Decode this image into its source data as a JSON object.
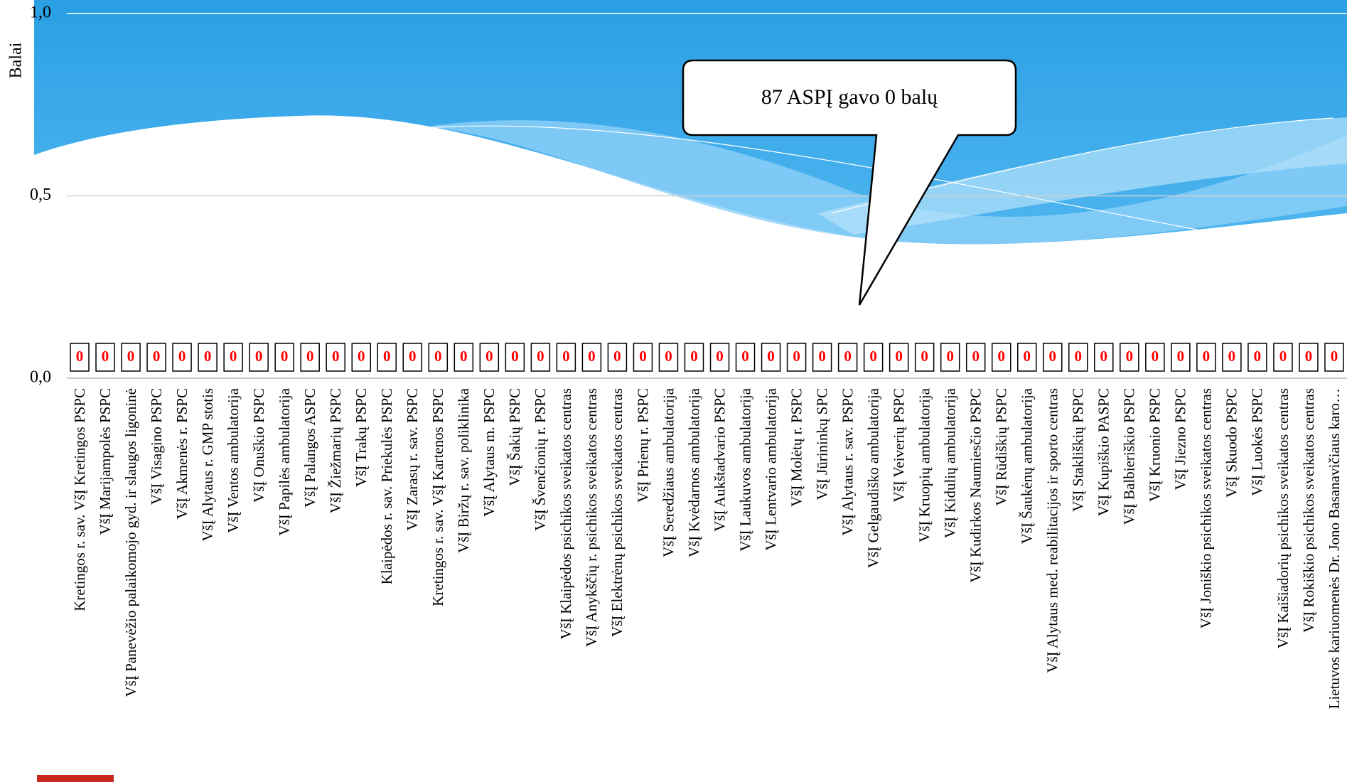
{
  "chart_data": {
    "type": "bar",
    "y_axis_label": "Balai",
    "annotation": "87 ASPĮ gavo 0 balų",
    "categories": [
      "Kretingos r. sav. VšĮ Kretingos PSPC",
      "VšĮ Marijampolės PSPC",
      "VšĮ Panevėžio palaikomojo gyd. ir slaugos ligoninė",
      "VšĮ Visagino PSPC",
      "VšĮ Akmenės r. PSPC",
      "VšĮ Alytaus r. GMP stotis",
      "VšĮ Ventos ambulatorija",
      "VšĮ Onuškio PSPC",
      "VšĮ Papilės ambulatorija",
      "VšĮ Palangos ASPC",
      "VšĮ Žiežmarių PSPC",
      "VšĮ Trakų PSPC",
      "Klaipėdos r. sav. Priekulės PSPC",
      "VšĮ Zarasų r. sav. PSPC",
      "Kretingos r. sav. VšĮ Kartenos PSPC",
      "VšĮ Biržų r. sav. poliklinika",
      "VšĮ Alytaus m. PSPC",
      "VšĮ Šakių PSPC",
      "VšĮ Švenčionių r. PSPC",
      "VšĮ Klaipėdos psichikos sveikatos centras",
      "VšĮ Anykščių r. psichikos sveikatos centras",
      "VšĮ Elektrėnų psichikos sveikatos centras",
      "VšĮ Prienų r. PSPC",
      "VšĮ Seredžiaus ambulatorija",
      "VšĮ Kvėdarnos ambulatorija",
      "VšĮ Aukštadvario PSPC",
      "VšĮ Laukuvos ambulatorija",
      "VšĮ Lentvario ambulatorija",
      "VšĮ Molėtų r. PSPC",
      "VšĮ Jūrininkų SPC",
      "VšĮ Alytaus r. sav. PSPC",
      "VšĮ Gelgaudiško ambulatorija",
      "VšĮ Veiverių PSPC",
      "VšĮ Kruopių ambulatorija",
      "VšĮ Kidulių ambulatorija",
      "VšĮ Kudirkos Naumiesčio PSPC",
      "VšĮ Rūdiškių PSPC",
      "VšĮ Šaukėnų ambulatorija",
      "VšĮ Alytaus med. reabilitacijos ir sporto centras",
      "VšĮ Stakliškių PSPC",
      "VšĮ Kupiškio PASPC",
      "VšĮ Balbieriškio PSPC",
      "VšĮ Kruonio PSPC",
      "VšĮ Jiezno PSPC",
      "VšĮ Joniškio psichikos sveikatos centras",
      "VšĮ Skuodo PSPC",
      "VšĮ Luokės PSPC",
      "VšĮ Kaišiadorių psichikos sveikatos centras",
      "VšĮ Rokiškio psichikos sveikatos centras",
      "Lietuvos kariuomenės Dr. Jono Basanavičiaus karo…"
    ],
    "values": [
      0,
      0,
      0,
      0,
      0,
      0,
      0,
      0,
      0,
      0,
      0,
      0,
      0,
      0,
      0,
      0,
      0,
      0,
      0,
      0,
      0,
      0,
      0,
      0,
      0,
      0,
      0,
      0,
      0,
      0,
      0,
      0,
      0,
      0,
      0,
      0,
      0,
      0,
      0,
      0,
      0,
      0,
      0,
      0,
      0,
      0,
      0,
      0,
      0,
      0
    ],
    "color": "#4472c4",
    "label_color": "#ff0000",
    "ylim": [
      0,
      1
    ],
    "yticks": [
      {
        "value": 0,
        "label": "0,0"
      },
      {
        "value": 0.5,
        "label": "0,5"
      },
      {
        "value": 1,
        "label": "1,0"
      }
    ],
    "grid": true
  }
}
